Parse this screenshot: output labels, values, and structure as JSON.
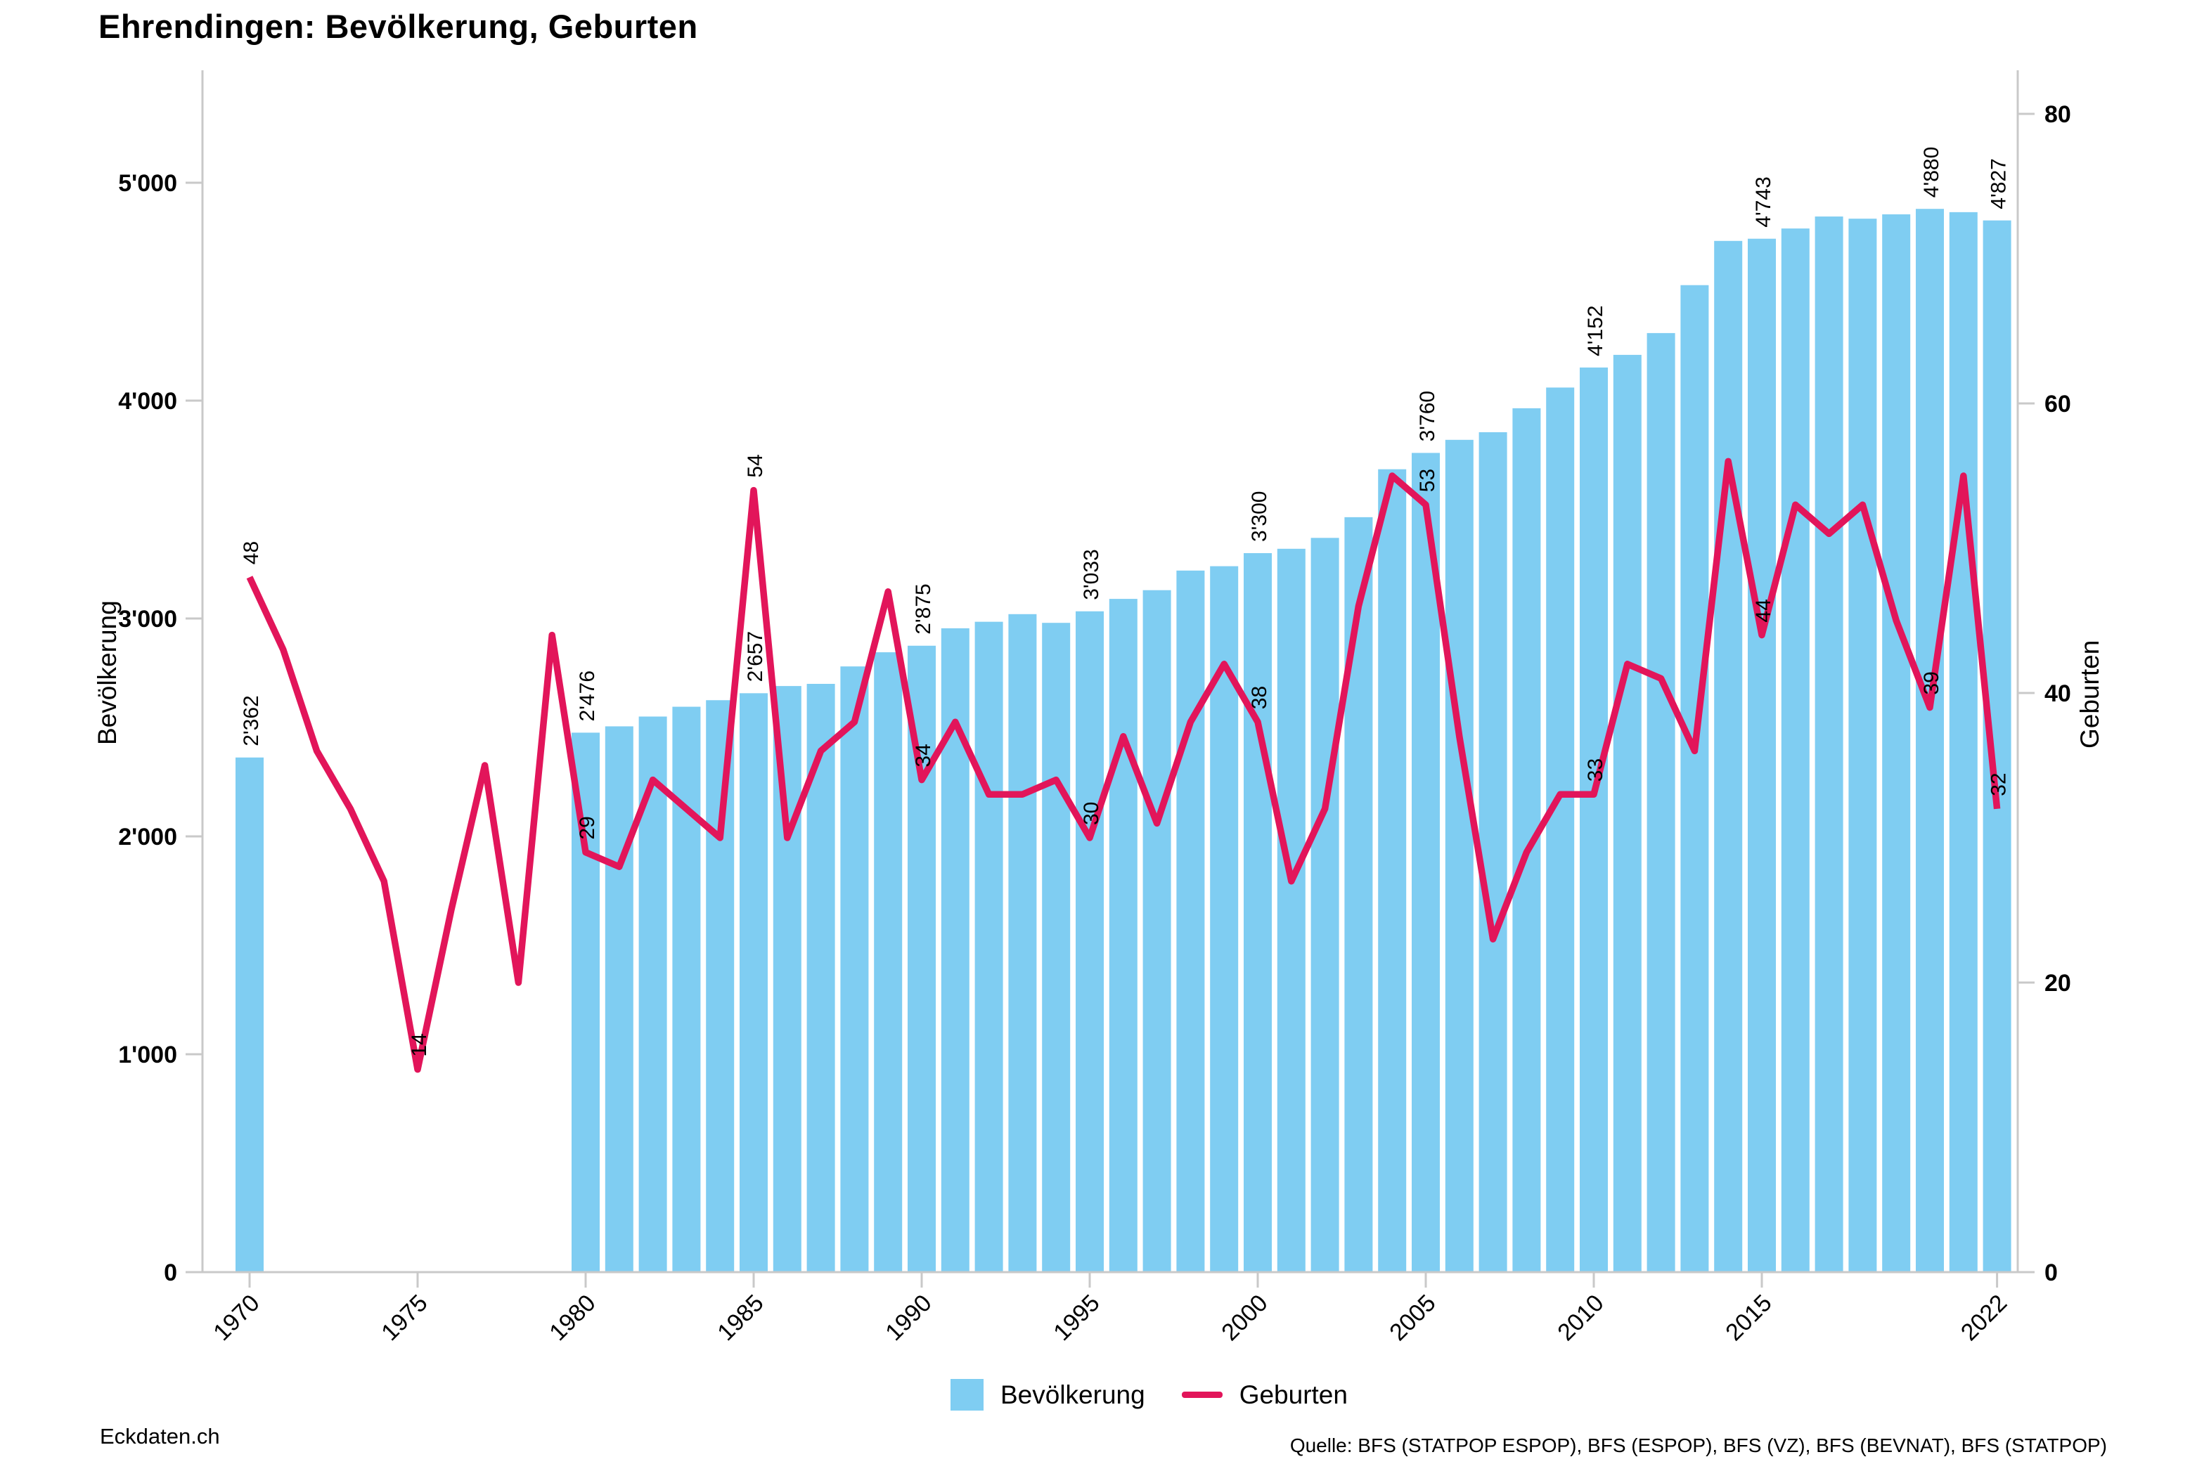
{
  "title": "Ehrendingen: Bevölkerung, Geburten",
  "colors": {
    "population_bar": "#7FCDF2",
    "births_line": "#E2155A",
    "axis_line": "#C9C9C9",
    "label_text": "#000000"
  },
  "legend": {
    "population": "Bevölkerung",
    "births": "Geburten"
  },
  "footer": {
    "left": "Eckdaten.ch",
    "source": "Quelle: BFS (STATPOP ESPOP), BFS (ESPOP), BFS (VZ), BFS (BEVNAT), BFS (STATPOP)"
  },
  "chart_data": {
    "type": "combo",
    "title": "Ehrendingen: Bevölkerung, Geburten",
    "grid": false,
    "legend_position": "bottom",
    "x": [
      1970,
      1971,
      1972,
      1973,
      1974,
      1975,
      1976,
      1977,
      1978,
      1979,
      1980,
      1981,
      1982,
      1983,
      1984,
      1985,
      1986,
      1987,
      1988,
      1989,
      1990,
      1991,
      1992,
      1993,
      1994,
      1995,
      1996,
      1997,
      1998,
      1999,
      2000,
      2001,
      2002,
      2003,
      2004,
      2005,
      2006,
      2007,
      2008,
      2009,
      2010,
      2011,
      2012,
      2013,
      2014,
      2015,
      2016,
      2017,
      2018,
      2019,
      2020,
      2021,
      2022
    ],
    "series": [
      {
        "name": "Bevölkerung",
        "type": "bar",
        "yaxis": "left",
        "values": [
          2362,
          null,
          null,
          null,
          null,
          null,
          null,
          null,
          null,
          null,
          2476,
          2505,
          2550,
          2595,
          2625,
          2657,
          2690,
          2700,
          2780,
          2845,
          2875,
          2955,
          2985,
          3020,
          2980,
          3033,
          3090,
          3130,
          3220,
          3240,
          3300,
          3320,
          3370,
          3465,
          3685,
          3760,
          3820,
          3855,
          3965,
          4060,
          4152,
          4210,
          4310,
          4530,
          4733,
          4743,
          4790,
          4845,
          4835,
          4855,
          4880,
          4865,
          4827
        ]
      },
      {
        "name": "Geburten",
        "type": "line",
        "yaxis": "right",
        "values": [
          48,
          43,
          36,
          32,
          27,
          14,
          25,
          35,
          20,
          44,
          29,
          28,
          34,
          32,
          30,
          54,
          30,
          36,
          38,
          47,
          34,
          38,
          33,
          33,
          34,
          30,
          37,
          31,
          38,
          42,
          38,
          27,
          32,
          46,
          55,
          53,
          37,
          23,
          29,
          33,
          33,
          42,
          41,
          36,
          56,
          44,
          53,
          51,
          53,
          45,
          39,
          55,
          32
        ]
      }
    ],
    "bar_labels": {
      "1970": "2'362",
      "1980": "2'476",
      "1985": "2'657",
      "1990": "2'875",
      "1995": "3'033",
      "2000": "3'300",
      "2005": "3'760",
      "2010": "4'152",
      "2015": "4'743",
      "2020": "4'880",
      "2022": "4'827"
    },
    "line_labels": {
      "1970": "48",
      "1975": "14",
      "1980": "29",
      "1985": "54",
      "1990": "34",
      "1995": "30",
      "2000": "38",
      "2005": "53",
      "2010": "33",
      "2015": "44",
      "2020": "39",
      "2022": "32"
    },
    "ylabel_left": "Bevölkerung",
    "ylabel_right": "Geburten",
    "ylim_left": [
      0,
      5000
    ],
    "ylim_right": [
      0,
      80
    ],
    "yticks_left": [
      "0",
      "1'000",
      "2'000",
      "3'000",
      "4'000",
      "5'000"
    ],
    "yticks_right": [
      "0",
      "20",
      "40",
      "60",
      "80"
    ],
    "xticks": [
      1970,
      1975,
      1980,
      1985,
      1990,
      1995,
      2000,
      2005,
      2010,
      2015,
      2022
    ]
  }
}
